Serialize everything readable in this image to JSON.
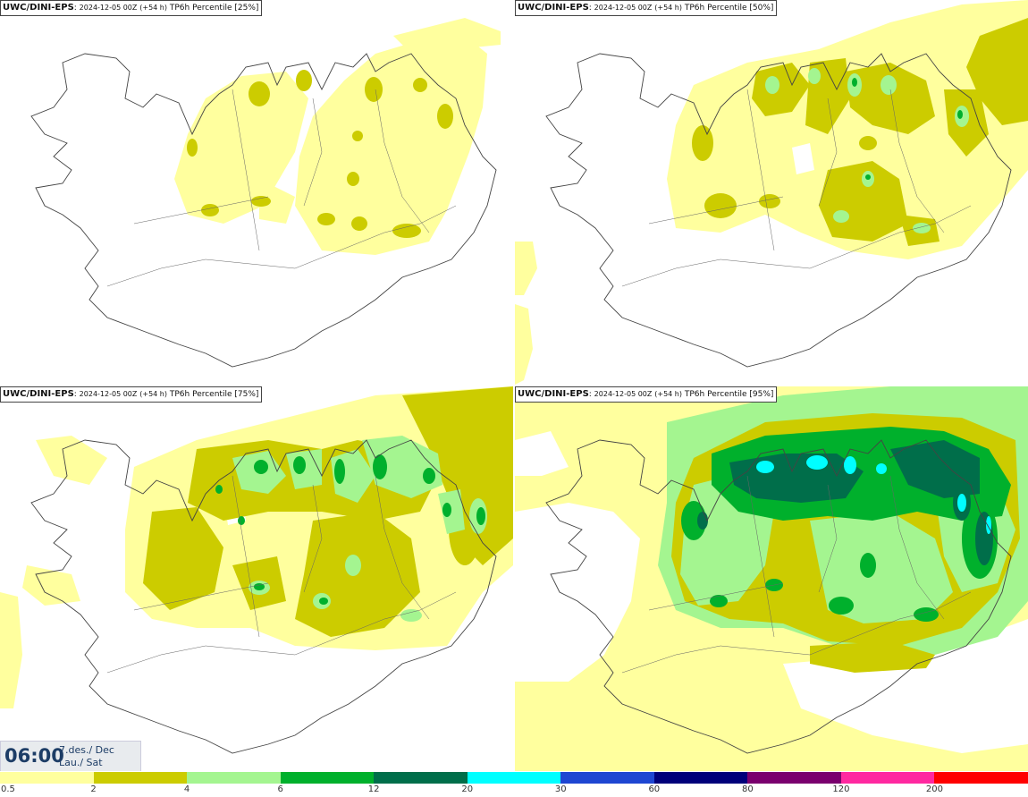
{
  "panels": [
    {
      "model": "UWC/DINI-EPS",
      "run": "2024-12-05 00Z",
      "lead": "(+54 h)",
      "field": "TP6h Percentile",
      "percentile": "[25%]"
    },
    {
      "model": "UWC/DINI-EPS",
      "run": "2024-12-05 00Z",
      "lead": "(+54 h)",
      "field": "TP6h Percentile",
      "percentile": "[50%]"
    },
    {
      "model": "UWC/DINI-EPS",
      "run": "2024-12-05 00Z",
      "lead": "(+54 h)",
      "field": "TP6h Percentile",
      "percentile": "[75%]"
    },
    {
      "model": "UWC/DINI-EPS",
      "run": "2024-12-05 00Z",
      "lead": "(+54 h)",
      "field": "TP6h Percentile",
      "percentile": "[95%]"
    }
  ],
  "valid_time": {
    "time": "06:00",
    "date_line1": "7.des./ Dec",
    "date_line2": "Lau./ Sat"
  },
  "legend": {
    "ticks": [
      "0.5",
      "2",
      "4",
      "6",
      "12",
      "20",
      "30",
      "60",
      "80",
      "120",
      "200"
    ],
    "colors": [
      "#ffff9e",
      "#cccc00",
      "#a4f590",
      "#00b02c",
      "#006e4a",
      "#00ffff",
      "#1e46d2",
      "#00007a",
      "#7a006e",
      "#ff28a0",
      "#ff0000"
    ]
  },
  "map_colors": {
    "light": "#ffff9e",
    "olive": "#cccc00",
    "lightgreen": "#a4f590",
    "green": "#00b02c",
    "darkgreen": "#006e4a",
    "cyan": "#00ffff",
    "coast": "#444444"
  }
}
